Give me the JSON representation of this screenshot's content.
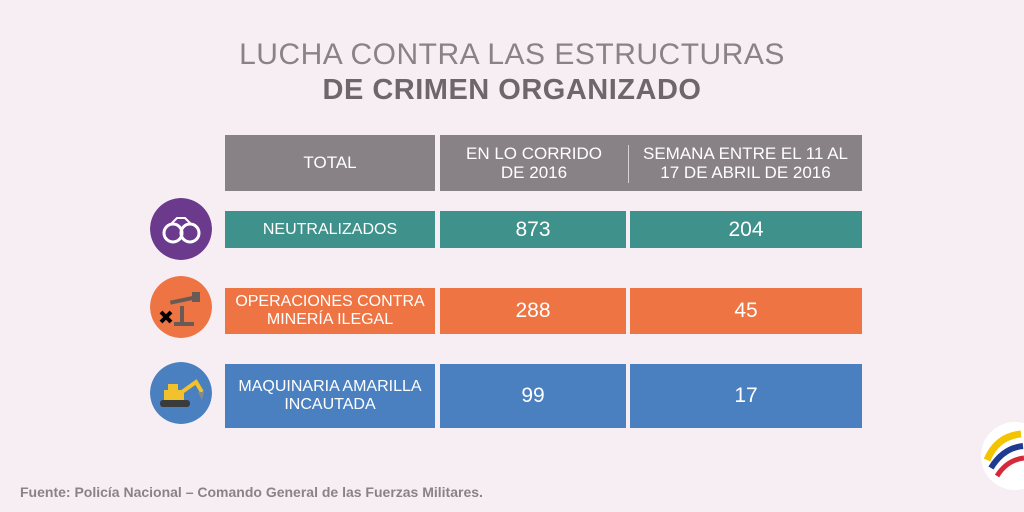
{
  "title": {
    "line1": "LUCHA CONTRA LAS ESTRUCTURAS",
    "line2": "DE CRIMEN ORGANIZADO"
  },
  "table": {
    "headers": {
      "total": "TOTAL",
      "col1_a": "EN LO CORRIDO",
      "col1_b": "DE 2016",
      "col2_a": "SEMANA ENTRE EL 11 AL",
      "col2_b": "17 DE ABRIL DE 2016"
    },
    "rows": [
      {
        "icon": "handcuffs-icon",
        "label_a": "NEUTRALIZADOS",
        "label_b": "",
        "ytd": "873",
        "week": "204"
      },
      {
        "icon": "oil-pump-icon",
        "label_a": "OPERACIONES CONTRA",
        "label_b": "MINERÍA ILEGAL",
        "ytd": "288",
        "week": "45"
      },
      {
        "icon": "excavator-icon",
        "label_a": "MAQUINARIA AMARILLA",
        "label_b": "INCAUTADA",
        "ytd": "99",
        "week": "17"
      }
    ]
  },
  "source": "Fuente: Policía Nacional – Comando General de las Fuerzas Militares.",
  "colors": {
    "background": "#f6eef3",
    "header": "#888186",
    "teal": "#3f918b",
    "orange": "#ee7444",
    "blue": "#4a80c0",
    "purple_circle": "#6b3a8c",
    "orange_circle": "#ee7444",
    "blue_circle": "#4a80c0"
  }
}
